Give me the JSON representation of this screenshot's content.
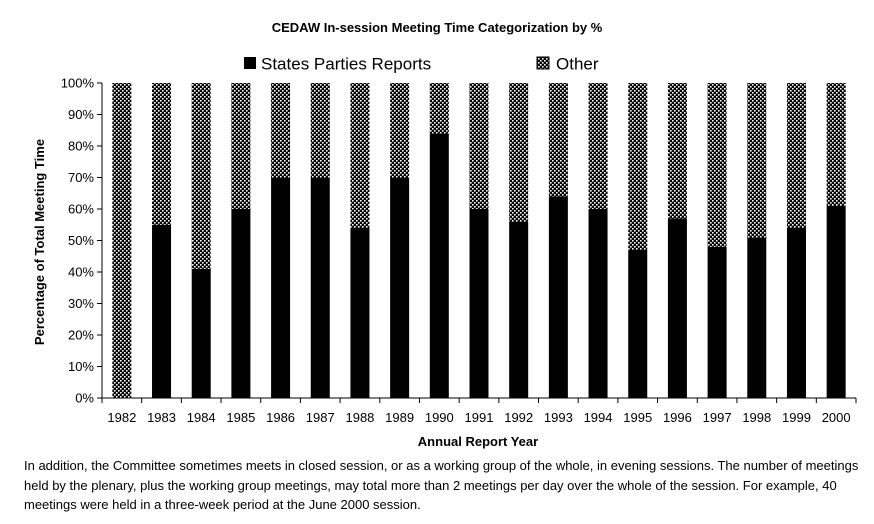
{
  "chart_data": {
    "type": "bar",
    "stacked": true,
    "title": "CEDAW In-session Meeting Time Categorization by %",
    "xlabel": "Annual Report Year",
    "ylabel": "Percentage of Total Meeting Time",
    "ylim": [
      0,
      100
    ],
    "yticks": [
      "0%",
      "10%",
      "20%",
      "30%",
      "40%",
      "50%",
      "60%",
      "70%",
      "80%",
      "90%",
      "100%"
    ],
    "grid": false,
    "legend_position": "top",
    "categories": [
      "1982",
      "1983",
      "1984",
      "1985",
      "1986",
      "1987",
      "1988",
      "1989",
      "1990",
      "1991",
      "1992",
      "1993",
      "1994",
      "1995",
      "1996",
      "1997",
      "1998",
      "1999",
      "2000"
    ],
    "series": [
      {
        "name": "States Parties Reports",
        "color": "#000000",
        "pattern": "solid",
        "values": [
          0,
          55,
          41,
          60,
          70,
          70,
          54,
          70,
          84,
          60,
          56,
          64,
          60,
          47,
          57,
          48,
          51,
          54,
          61
        ]
      },
      {
        "name": "Other",
        "color": "#000000",
        "pattern": "dotted",
        "values": [
          100,
          45,
          59,
          40,
          30,
          30,
          46,
          30,
          16,
          40,
          44,
          36,
          40,
          53,
          43,
          52,
          49,
          46,
          39
        ]
      }
    ]
  },
  "caption": "In addition, the Committee sometimes meets in closed session, or as a working group of the whole, in evening sessions. The number of meetings held by the plenary, plus the working group meetings, may total more than 2 meetings per day over the whole of the session. For example, 40 meetings were held in a three-week period at the June 2000 session."
}
